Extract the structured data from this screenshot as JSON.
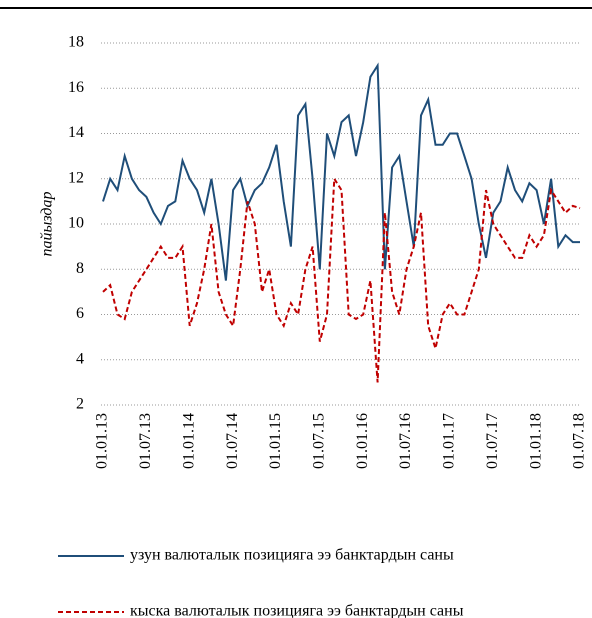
{
  "chart_data": {
    "type": "line",
    "ylabel": "пайыздар",
    "categories": [
      "01.01.13",
      null,
      null,
      null,
      null,
      null,
      "01.07.13",
      null,
      null,
      null,
      null,
      null,
      "01.01.14",
      null,
      null,
      null,
      null,
      null,
      "01.07.14",
      null,
      null,
      null,
      null,
      null,
      "01.01.15",
      null,
      null,
      null,
      null,
      null,
      "01.07.15",
      null,
      null,
      null,
      null,
      null,
      "01.01.16",
      null,
      null,
      null,
      null,
      null,
      "01.07.16",
      null,
      null,
      null,
      null,
      null,
      "01.01.17",
      null,
      null,
      null,
      null,
      null,
      "01.07.17",
      null,
      null,
      null,
      null,
      null,
      "01.01.18",
      null,
      null,
      null,
      null,
      null,
      "01.07.18"
    ],
    "series": [
      {
        "name": "узун валюталык позицияга ээ банктардын саны",
        "color": "#1f4e79",
        "dash": false,
        "values": [
          11,
          12,
          11.5,
          13,
          12,
          11.5,
          11.2,
          10.5,
          10,
          10.8,
          11,
          12.8,
          12,
          11.5,
          10.5,
          12,
          10,
          7.5,
          11.5,
          12,
          10.8,
          11.5,
          11.8,
          12.5,
          13.5,
          11,
          9,
          14.8,
          15.3,
          12,
          8,
          14,
          13,
          14.5,
          14.8,
          13,
          14.5,
          16.5,
          17,
          8,
          12.5,
          13,
          11,
          9,
          14.8,
          15.5,
          13.5,
          13.5,
          14,
          14,
          13,
          12,
          10,
          8.5,
          10.5,
          11,
          12.5,
          11.5,
          11,
          11.8,
          11.5,
          10,
          12,
          9,
          9.5,
          9.2,
          9.2
        ]
      },
      {
        "name": "кыска валюталык позицияга ээ банктардын саны",
        "color": "#c00000",
        "dash": true,
        "values": [
          7,
          7.3,
          6,
          5.8,
          7,
          7.5,
          8,
          8.5,
          9,
          8.5,
          8.5,
          9,
          5.5,
          6.5,
          8,
          10,
          7,
          6,
          5.5,
          8,
          11,
          10,
          7,
          8,
          6,
          5.5,
          6.5,
          6,
          8,
          9,
          4.8,
          6,
          12,
          11.5,
          6,
          5.8,
          6,
          7.5,
          3,
          10.5,
          7,
          6,
          8,
          9,
          10.5,
          5.5,
          4.5,
          6,
          6.5,
          6,
          6,
          7,
          8,
          11.5,
          10,
          9.5,
          9,
          8.5,
          8.5,
          9.5,
          9,
          9.5,
          11.5,
          11,
          10.5,
          10.8,
          10.7
        ]
      }
    ],
    "ylim": [
      2,
      18
    ],
    "yticks": [
      2,
      4,
      6,
      8,
      10,
      12,
      14,
      16,
      18
    ],
    "grid": true
  }
}
